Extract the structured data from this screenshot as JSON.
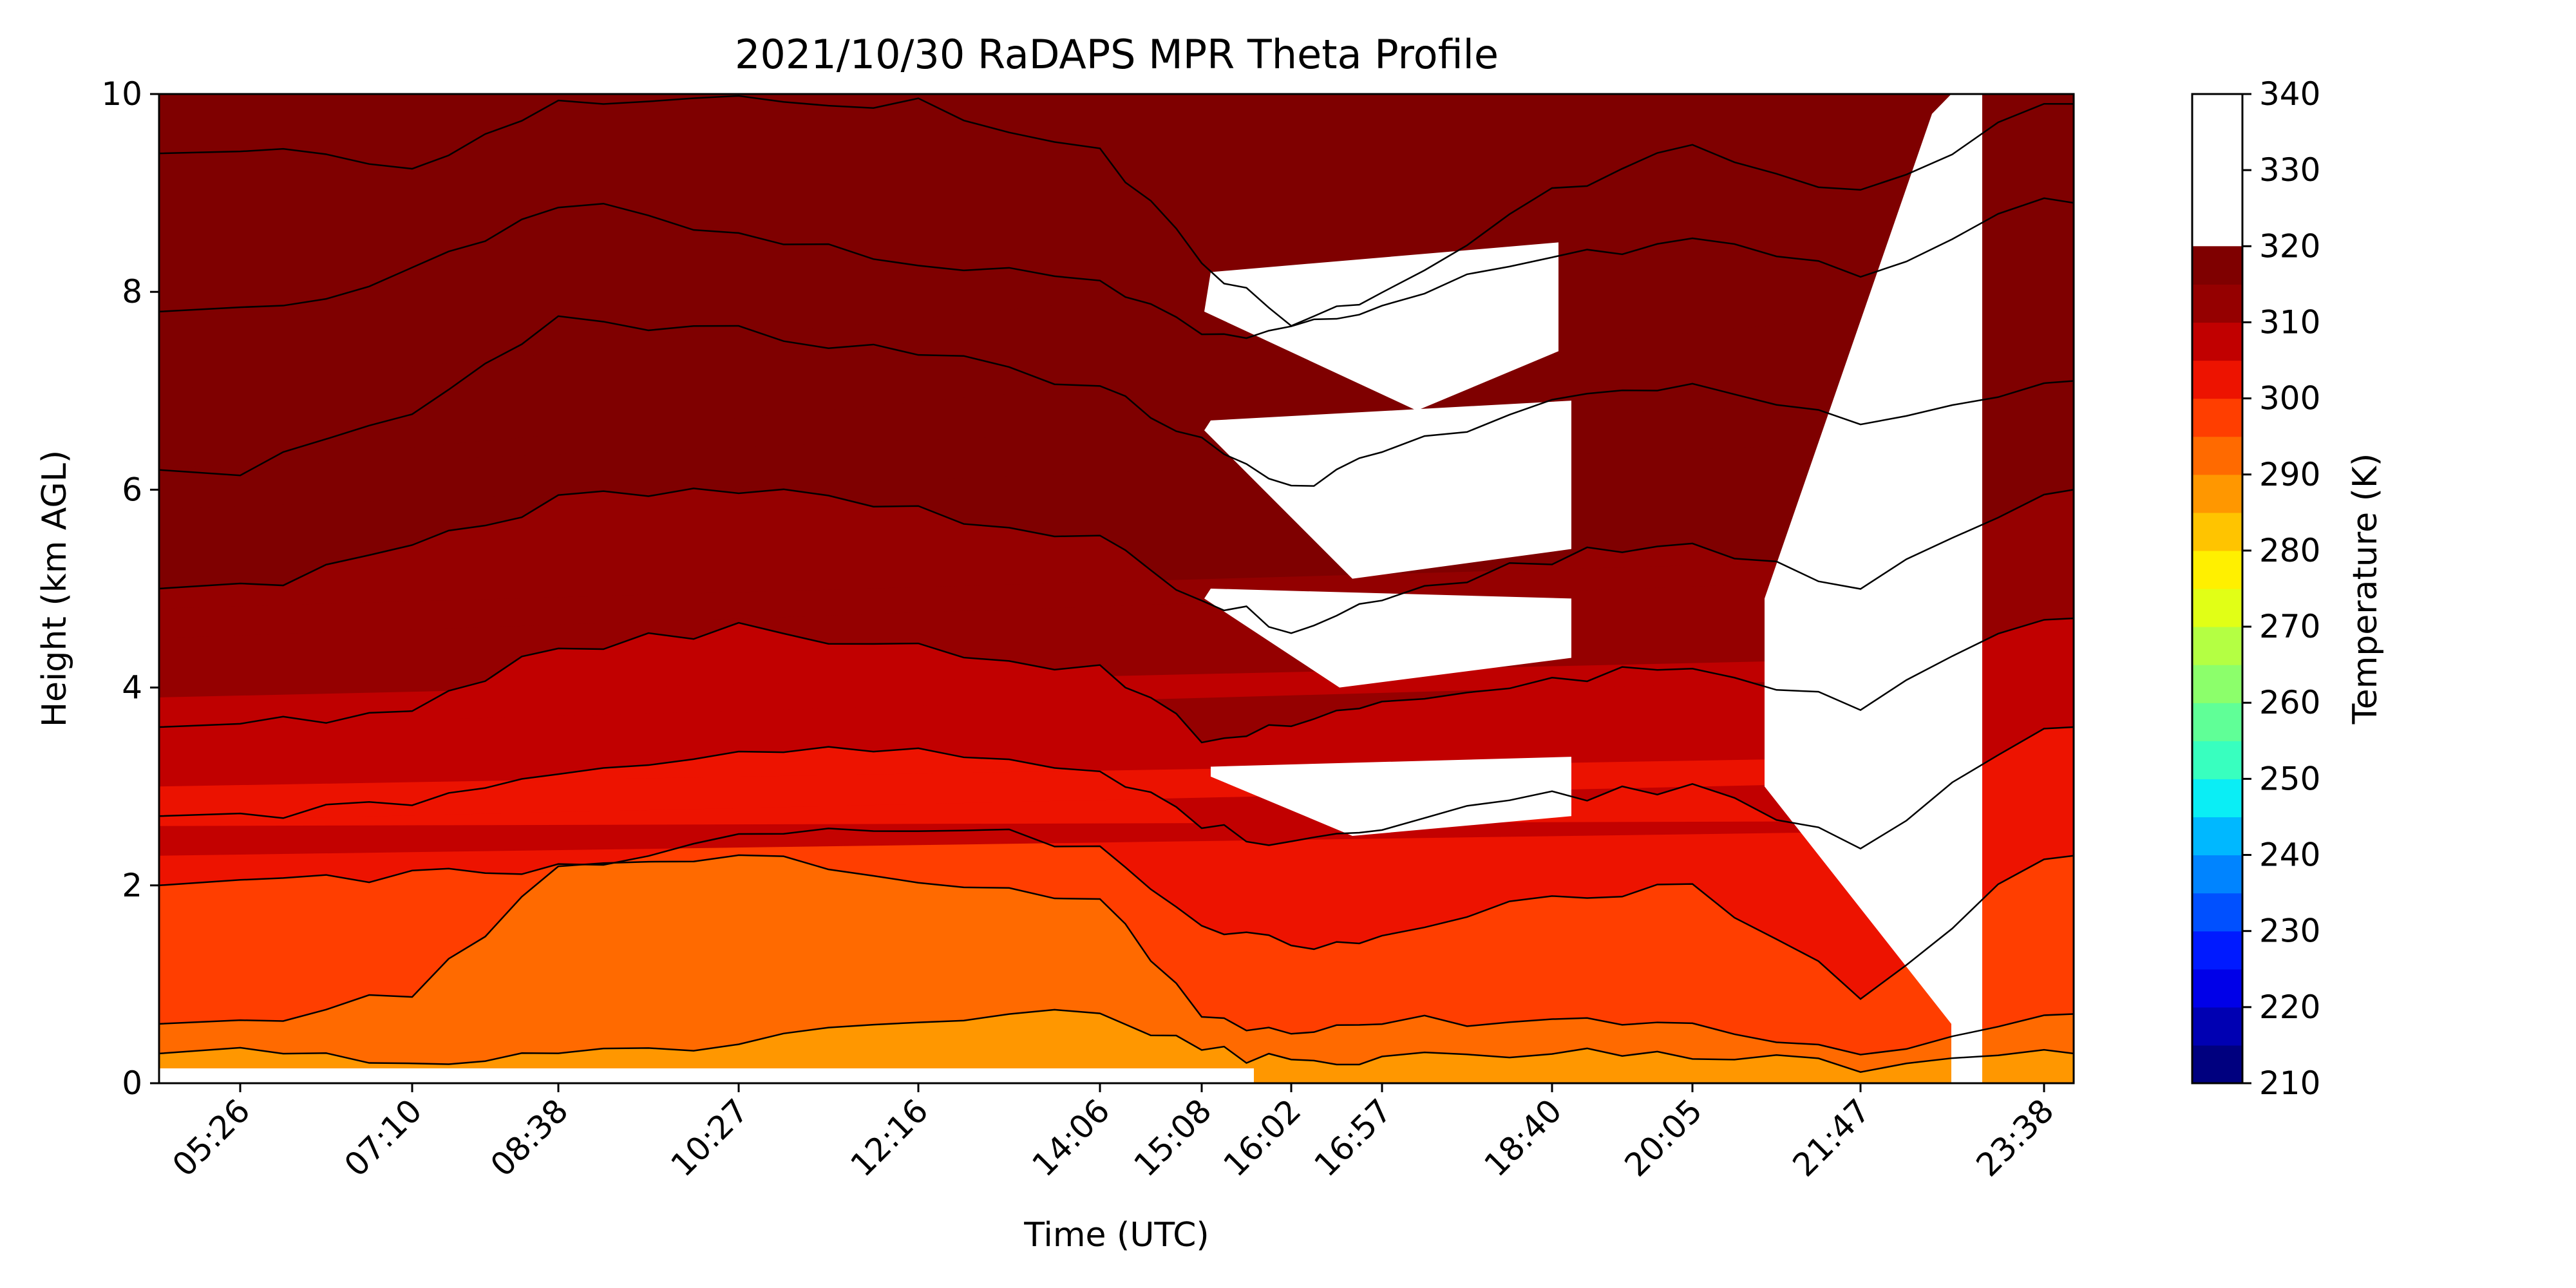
{
  "chart_data": {
    "type": "heatmap",
    "title": "2021/10/30 RaDAPS MPR Theta Profile",
    "xlabel": "Time (UTC)",
    "ylabel": "Height (km AGL)",
    "x_tick_labels": [
      "05:26",
      "07:10",
      "08:38",
      "10:27",
      "12:16",
      "14:06",
      "15:08",
      "16:02",
      "16:57",
      "18:40",
      "20:05",
      "21:47",
      "23:38"
    ],
    "y_ticks": [
      0,
      2,
      4,
      6,
      8,
      10
    ],
    "ylim": [
      0,
      10
    ],
    "colorbar": {
      "label": "Temperature (K)",
      "min": 210,
      "max": 340,
      "step": 5,
      "tick_values": [
        210,
        220,
        230,
        240,
        250,
        260,
        270,
        280,
        290,
        300,
        310,
        320,
        330,
        340
      ],
      "colors": [
        "#00007f",
        "#0000b2",
        "#0000e8",
        "#001aff",
        "#0050ff",
        "#0084ff",
        "#00b8ff",
        "#0aeef5",
        "#38ffbf",
        "#60ff97",
        "#8cff6b",
        "#b4ff43",
        "#e1ff16",
        "#fff000",
        "#ffc400",
        "#ff9700",
        "#ff6a00",
        "#ff3e00",
        "#ed1300",
        "#c10000",
        "#950000",
        "#7f0000"
      ],
      "grid": false
    },
    "profile_levels_theta_k": [
      290,
      295,
      300,
      305,
      310,
      315,
      320,
      325,
      330,
      335
    ],
    "contour_heights_km": {
      "x_tick_index": [
        0,
        1,
        2,
        3,
        4,
        5,
        6,
        7,
        8,
        9,
        10,
        11,
        12
      ],
      "290": [
        0.3,
        0.25,
        0.25,
        0.4,
        0.6,
        0.7,
        0.35,
        0.2,
        0.25,
        0.3,
        0.3,
        0.15,
        0.3
      ],
      "295": [
        0.6,
        0.9,
        2.2,
        2.3,
        2.0,
        1.9,
        0.7,
        0.5,
        0.6,
        0.65,
        0.55,
        0.3,
        0.7
      ],
      "300": [
        2.0,
        2.1,
        2.2,
        2.5,
        2.6,
        2.4,
        1.6,
        1.4,
        1.5,
        1.9,
        2.0,
        0.9,
        2.3
      ],
      "305": [
        2.7,
        2.8,
        3.1,
        3.4,
        3.4,
        3.2,
        2.6,
        2.4,
        2.6,
        2.9,
        3.0,
        2.4,
        3.6
      ],
      "310": [
        3.6,
        3.8,
        4.4,
        4.6,
        4.4,
        4.2,
        3.5,
        3.6,
        3.8,
        4.1,
        4.2,
        3.8,
        4.7
      ],
      "315": [
        5.0,
        5.4,
        5.9,
        6.0,
        5.8,
        5.5,
        4.9,
        4.6,
        4.9,
        5.3,
        5.5,
        5.0,
        6.0
      ],
      "320": [
        6.2,
        6.8,
        7.7,
        7.6,
        7.4,
        7.0,
        6.5,
        6.0,
        6.4,
        6.9,
        7.1,
        6.7,
        7.1
      ],
      "325": [
        7.8,
        8.2,
        8.9,
        8.6,
        8.3,
        8.1,
        7.6,
        7.6,
        7.9,
        8.4,
        8.5,
        8.2,
        8.9
      ],
      "330": [
        9.4,
        9.3,
        9.9,
        9.95,
        9.9,
        9.4,
        8.3,
        7.7,
        8.0,
        9.0,
        9.5,
        9.0,
        9.9
      ]
    }
  }
}
